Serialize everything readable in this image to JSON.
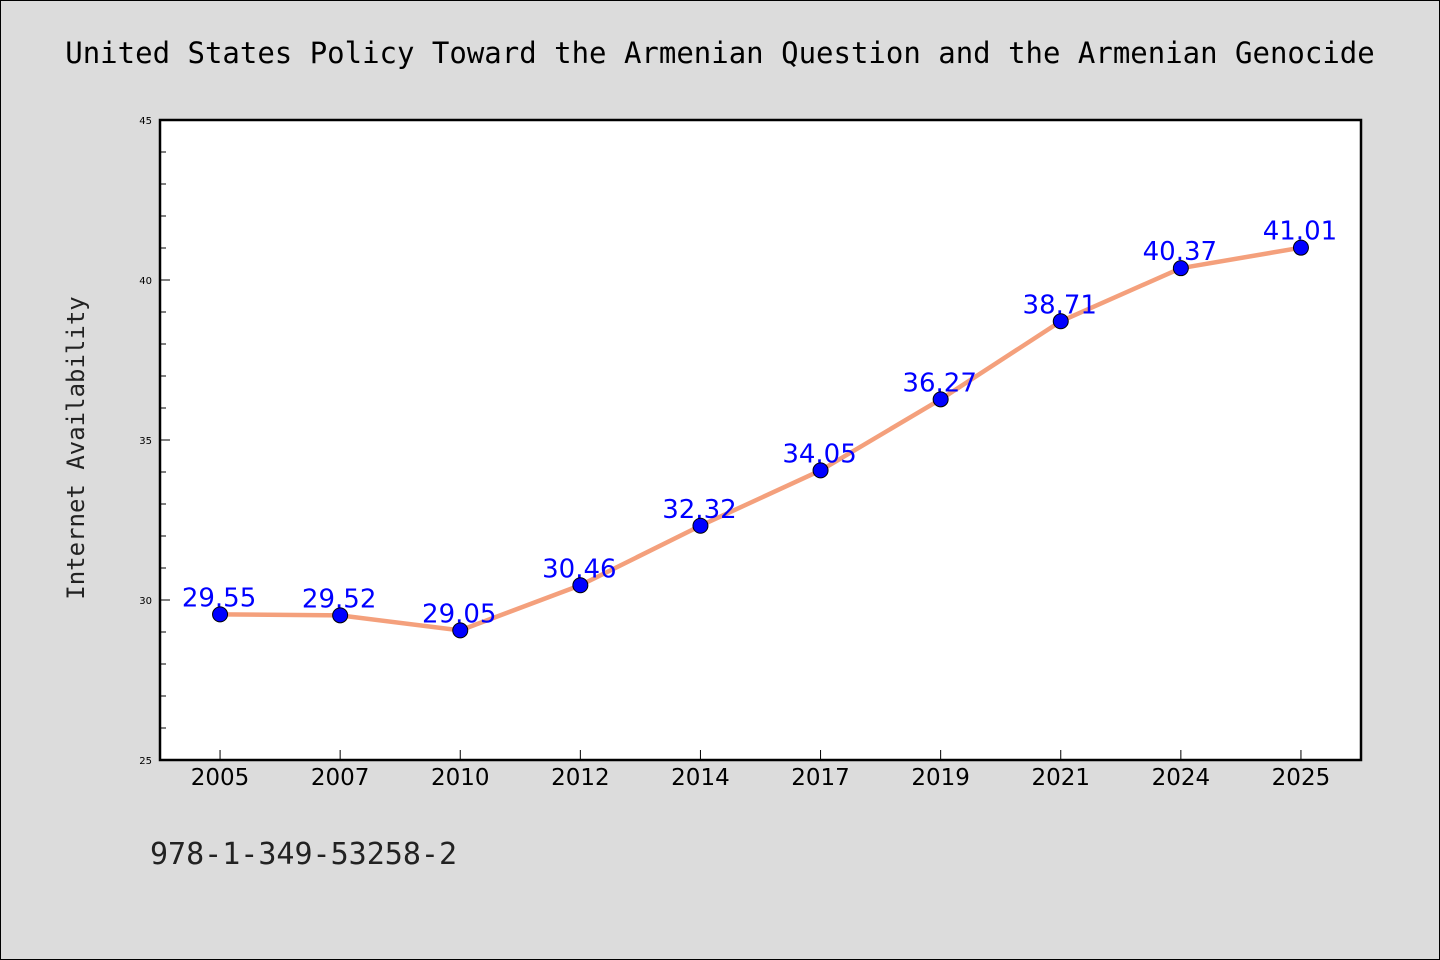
{
  "chart_data": {
    "type": "line",
    "title": "United States Policy Toward the Armenian Question and the Armenian Genocide",
    "xlabel": "",
    "ylabel": "Internet Availability",
    "categories": [
      "2005",
      "2007",
      "2010",
      "2012",
      "2014",
      "2017",
      "2019",
      "2021",
      "2024",
      "2025"
    ],
    "series": [
      {
        "values": [
          29.55,
          29.52,
          29.05,
          30.46,
          32.32,
          34.05,
          36.27,
          38.71,
          40.37,
          41.01
        ],
        "labels": [
          "29.55",
          "29.52",
          "29.05",
          "30.46",
          "32.32",
          "34.05",
          "36.27",
          "38.71",
          "40.37",
          "41.01"
        ]
      }
    ],
    "ylim": [
      25,
      45
    ],
    "yticks": [
      "25",
      "30",
      "35",
      "40",
      "45"
    ],
    "grid": false,
    "colors": {
      "line": "#f4a07c",
      "marker": "#0000ff",
      "label": "#0000ff",
      "background": "#dcdcdc",
      "plot_background": "#ffffff"
    }
  },
  "footer": {
    "isbn": "978-1-349-53258-2"
  }
}
